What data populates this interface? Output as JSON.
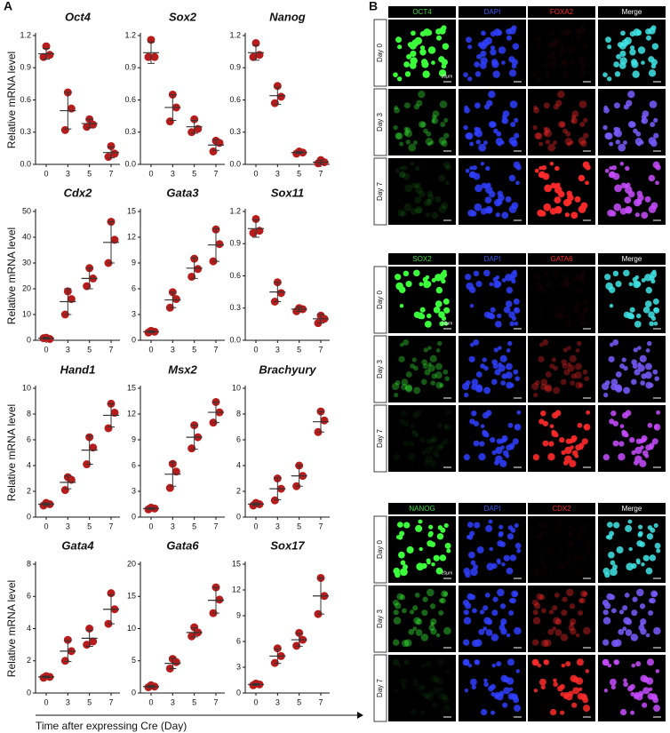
{
  "panel_a": {
    "label": "A",
    "xlabel": "Time after expressing Cre (Day)"
  },
  "chart_data": [
    {
      "type": "dot",
      "title": "Oct4",
      "ylabel": "Relative mRNA level",
      "categories": [
        "0",
        "3",
        "5",
        "7"
      ],
      "points": [
        [
          1.1,
          1.02,
          1.0
        ],
        [
          0.67,
          0.52,
          0.32
        ],
        [
          0.42,
          0.37,
          0.35
        ],
        [
          0.17,
          0.1,
          0.07
        ]
      ],
      "means": [
        1.03,
        0.5,
        0.38,
        0.11
      ],
      "errors": [
        0.05,
        0.17,
        0.04,
        0.05
      ],
      "ylim": [
        0,
        1.2
      ],
      "yticks": [
        {
          "value": 0,
          "label": "0.0"
        },
        0.3,
        0.6,
        0.9,
        1.2
      ],
      "color": "#b71c1c"
    },
    {
      "type": "dot",
      "title": "Sox2",
      "categories": [
        "0",
        "3",
        "5",
        "7"
      ],
      "points": [
        [
          1.16,
          1.0,
          1.0
        ],
        [
          0.65,
          0.53,
          0.4
        ],
        [
          0.42,
          0.33,
          0.3
        ],
        [
          0.22,
          0.2,
          0.12
        ]
      ],
      "means": [
        1.04,
        0.53,
        0.35,
        0.18
      ],
      "errors": [
        0.1,
        0.12,
        0.06,
        0.05
      ],
      "ylim": [
        0,
        1.2
      ],
      "yticks": [
        {
          "value": 0,
          "label": "0.0"
        },
        0.3,
        0.6,
        0.9,
        1.2
      ],
      "color": "#b71c1c"
    },
    {
      "type": "dot",
      "title": "Nanog",
      "categories": [
        "0",
        "3",
        "5",
        "7"
      ],
      "points": [
        [
          1.13,
          1.02,
          1.0
        ],
        [
          0.73,
          0.63,
          0.57
        ],
        [
          0.12,
          0.11,
          0.1
        ],
        [
          0.04,
          0.02,
          0.01
        ]
      ],
      "means": [
        1.04,
        0.64,
        0.11,
        0.02
      ],
      "errors": [
        0.07,
        0.08,
        0.01,
        0.02
      ],
      "ylim": [
        0,
        1.2
      ],
      "yticks": [
        {
          "value": 0,
          "label": "0.0"
        },
        0.3,
        0.6,
        0.9,
        1.2
      ],
      "color": "#b71c1c"
    },
    {
      "type": "dot",
      "title": "Cdx2",
      "ylabel": "Relative mRNA level",
      "categories": [
        "0",
        "3",
        "5",
        "7"
      ],
      "points": [
        [
          1,
          0.5,
          0.8
        ],
        [
          19,
          16,
          10
        ],
        [
          28,
          24,
          21
        ],
        [
          46,
          39,
          30
        ]
      ],
      "means": [
        0.8,
        15,
        24,
        38
      ],
      "errors": [
        0.3,
        5,
        4,
        8
      ],
      "ylim": [
        0,
        50
      ],
      "yticks": [
        0,
        10,
        20,
        30,
        40,
        50
      ],
      "color": "#b71c1c"
    },
    {
      "type": "dot",
      "title": "Gata3",
      "categories": [
        "0",
        "3",
        "5",
        "7"
      ],
      "points": [
        [
          1.1,
          1.0,
          0.9
        ],
        [
          5.6,
          4.8,
          3.8
        ],
        [
          9.5,
          8.3,
          7.4
        ],
        [
          12.9,
          11.2,
          9.2
        ]
      ],
      "means": [
        1.0,
        4.7,
        8.4,
        11.1
      ],
      "errors": [
        0.1,
        0.9,
        1.2,
        1.9
      ],
      "ylim": [
        0,
        15
      ],
      "yticks": [
        0,
        3,
        6,
        9,
        12,
        15
      ],
      "color": "#b71c1c"
    },
    {
      "type": "dot",
      "title": "Sox11",
      "categories": [
        "0",
        "3",
        "5",
        "7"
      ],
      "points": [
        [
          1.13,
          1.02,
          1.0
        ],
        [
          0.54,
          0.44,
          0.36
        ],
        [
          0.3,
          0.29,
          0.27
        ],
        [
          0.23,
          0.2,
          0.16
        ]
      ],
      "means": [
        1.04,
        0.45,
        0.29,
        0.2
      ],
      "errors": [
        0.08,
        0.09,
        0.02,
        0.04
      ],
      "ylim": [
        0,
        1.2
      ],
      "yticks": [
        {
          "value": 0,
          "label": "0.0"
        },
        0.3,
        0.6,
        0.9,
        1.2
      ],
      "color": "#b71c1c"
    },
    {
      "type": "dot",
      "title": "Hand1",
      "ylabel": "Relative mRNA level",
      "categories": [
        "0",
        "3",
        "5",
        "7"
      ],
      "points": [
        [
          1.1,
          1.0,
          0.9
        ],
        [
          3.1,
          2.9,
          2.1
        ],
        [
          6.2,
          5.4,
          4.1
        ],
        [
          8.8,
          8.1,
          6.9
        ]
      ],
      "means": [
        1.0,
        2.7,
        5.2,
        7.9
      ],
      "errors": [
        0.1,
        0.5,
        1.1,
        0.9
      ],
      "ylim": [
        0,
        10
      ],
      "yticks": [
        0,
        2,
        4,
        6,
        8,
        10
      ],
      "color": "#b71c1c"
    },
    {
      "type": "dot",
      "title": "Msx2",
      "categories": [
        "0",
        "3",
        "5",
        "7"
      ],
      "points": [
        [
          1.1,
          1.0,
          0.9
        ],
        [
          6.2,
          5.3,
          3.4
        ],
        [
          10.7,
          9.3,
          8.0
        ],
        [
          13.4,
          12.2,
          11.0
        ]
      ],
      "means": [
        1.0,
        5.0,
        9.3,
        12.2
      ],
      "errors": [
        0.1,
        1.4,
        1.4,
        1.2
      ],
      "ylim": [
        0,
        15
      ],
      "yticks": [
        0,
        3,
        6,
        9,
        12,
        15
      ],
      "color": "#b71c1c"
    },
    {
      "type": "dot",
      "title": "Brachyury",
      "categories": [
        "0",
        "3",
        "5",
        "7"
      ],
      "points": [
        [
          1.1,
          1.0,
          0.9
        ],
        [
          3.0,
          2.2,
          1.3
        ],
        [
          4.0,
          3.2,
          2.4
        ],
        [
          8.2,
          7.5,
          6.6
        ]
      ],
      "means": [
        1.0,
        2.2,
        3.2,
        7.4
      ],
      "errors": [
        0.1,
        0.85,
        0.8,
        0.8
      ],
      "ylim": [
        0,
        10
      ],
      "yticks": [
        0,
        2,
        4,
        6,
        8,
        10
      ],
      "color": "#b71c1c"
    },
    {
      "type": "dot",
      "title": "Gata4",
      "ylabel": "Relative mRNA level",
      "categories": [
        "0",
        "3",
        "5",
        "7"
      ],
      "points": [
        [
          1.05,
          1.0,
          0.95
        ],
        [
          3.3,
          2.6,
          2.0
        ],
        [
          4.0,
          3.2,
          3.0
        ],
        [
          6.2,
          5.2,
          4.3
        ]
      ],
      "means": [
        1.0,
        2.6,
        3.4,
        5.2
      ],
      "errors": [
        0.05,
        0.65,
        0.5,
        0.9
      ],
      "ylim": [
        0,
        8
      ],
      "yticks": [
        0,
        2,
        4,
        6,
        8
      ],
      "color": "#b71c1c"
    },
    {
      "type": "dot",
      "title": "Gata6",
      "categories": [
        "0",
        "3",
        "5",
        "7"
      ],
      "points": [
        [
          1.2,
          1.0,
          0.9
        ],
        [
          5.3,
          4.8,
          3.8
        ],
        [
          10.2,
          9.4,
          8.8
        ],
        [
          16.4,
          14.5,
          12.4
        ]
      ],
      "means": [
        1.0,
        4.6,
        9.4,
        14.4
      ],
      "errors": [
        0.15,
        0.8,
        0.7,
        2.0
      ],
      "ylim": [
        0,
        20
      ],
      "yticks": [
        0,
        5,
        10,
        15,
        20
      ],
      "color": "#b71c1c"
    },
    {
      "type": "dot",
      "title": "Sox17",
      "categories": [
        "0",
        "3",
        "5",
        "7"
      ],
      "points": [
        [
          1.1,
          1.0,
          0.9
        ],
        [
          5.2,
          4.3,
          3.5
        ],
        [
          7.0,
          6.2,
          5.5
        ],
        [
          13.4,
          11.3,
          9.2
        ]
      ],
      "means": [
        1.0,
        4.3,
        6.2,
        11.3
      ],
      "errors": [
        0.1,
        0.85,
        0.75,
        2.1
      ],
      "ylim": [
        0,
        15
      ],
      "yticks": [
        0,
        3,
        6,
        9,
        12,
        15
      ],
      "color": "#b71c1c"
    }
  ],
  "panel_b": {
    "label": "B",
    "groups": [
      {
        "headers": [
          "OCT4",
          "DAPI",
          "FOXA2",
          "Merge"
        ],
        "rows": [
          "Day 0",
          "Day 3",
          "Day 7"
        ],
        "scale": "20μm"
      },
      {
        "headers": [
          "SOX2",
          "DAPI",
          "GATA6",
          "Merge"
        ],
        "rows": [
          "Day 0",
          "Day 3",
          "Day 7"
        ],
        "scale": "20μm"
      },
      {
        "headers": [
          "NANOG",
          "DAPI",
          "CDX2",
          "Merge"
        ],
        "rows": [
          "Day 0",
          "Day 3",
          "Day 7"
        ],
        "scale": "20μm"
      }
    ]
  }
}
